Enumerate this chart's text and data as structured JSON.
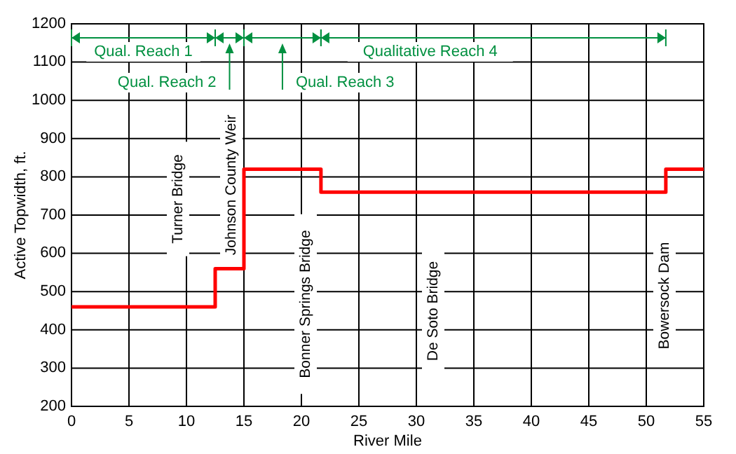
{
  "chart_data": {
    "type": "step",
    "xlabel": "River Mile",
    "ylabel": "Active Topwidth, ft.",
    "x": [
      0,
      12.5,
      15,
      21.7,
      51.7,
      55
    ],
    "series": [
      {
        "color": "#ff0000",
        "values": [
          460,
          560,
          820,
          760,
          820,
          820
        ]
      }
    ],
    "xlim": [
      0,
      55
    ],
    "xticks": [
      0,
      5,
      10,
      15,
      20,
      25,
      30,
      35,
      40,
      45,
      50,
      55
    ],
    "ylim": [
      200,
      1200
    ],
    "yticks": [
      200,
      300,
      400,
      500,
      600,
      700,
      800,
      900,
      1000,
      1100,
      1200
    ],
    "grid": true,
    "annotations": [
      "Qual. Reach 1",
      "Qual. Reach 2",
      "Qual. Reach 3",
      "Qualitative Reach 4",
      "Turner Bridge",
      "Johnson County Weir",
      "Bonner Springs Bridge",
      "De Soto Bridge",
      "Bowersock Dam"
    ]
  }
}
